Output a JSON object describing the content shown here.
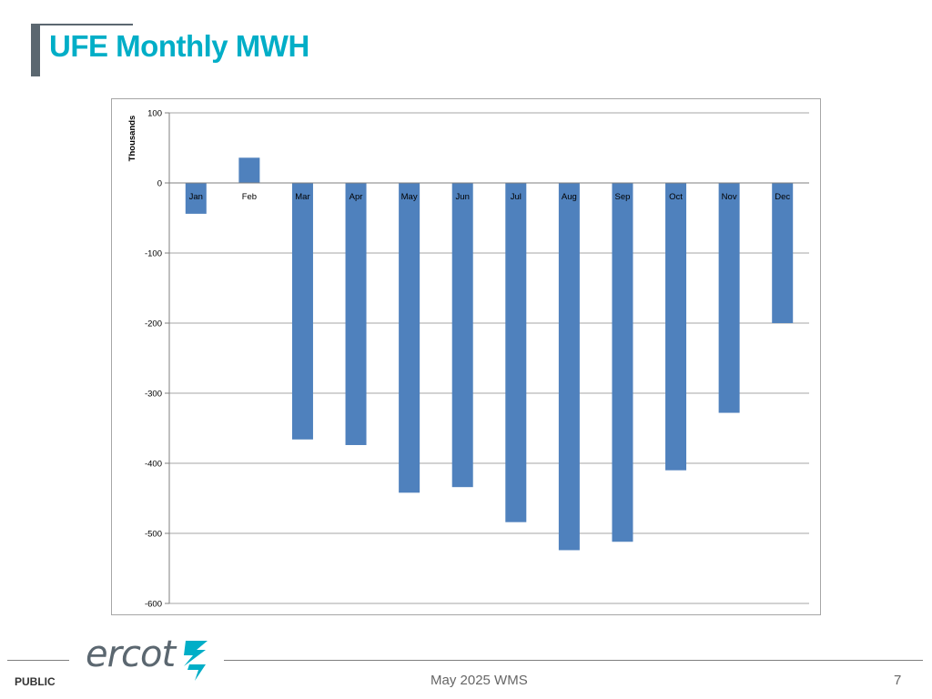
{
  "slide": {
    "title": "UFE Monthly MWH",
    "footer_left": "PUBLIC",
    "footer_center": "May 2025 WMS",
    "page_number": "7",
    "logo_text": "ercot"
  },
  "colors": {
    "title": "#00aec7",
    "bar": "#4f81bd",
    "grid": "#a6a6a6",
    "logo_gray": "#5b6770",
    "logo_teal": "#00aec7"
  },
  "chart_data": {
    "type": "bar",
    "title": "",
    "xlabel": "",
    "ylabel": "Thousands",
    "categories": [
      "Jan",
      "Feb",
      "Mar",
      "Apr",
      "May",
      "Jun",
      "Jul",
      "Aug",
      "Sep",
      "Oct",
      "Nov",
      "Dec"
    ],
    "values": [
      -44,
      36,
      -366,
      -374,
      -442,
      -434,
      -484,
      -524,
      -512,
      -410,
      -328,
      -200
    ],
    "ylim": [
      -600,
      100
    ],
    "yticks": [
      100,
      0,
      -100,
      -200,
      -300,
      -400,
      -500,
      -600
    ],
    "grid": true,
    "legend": "none"
  }
}
